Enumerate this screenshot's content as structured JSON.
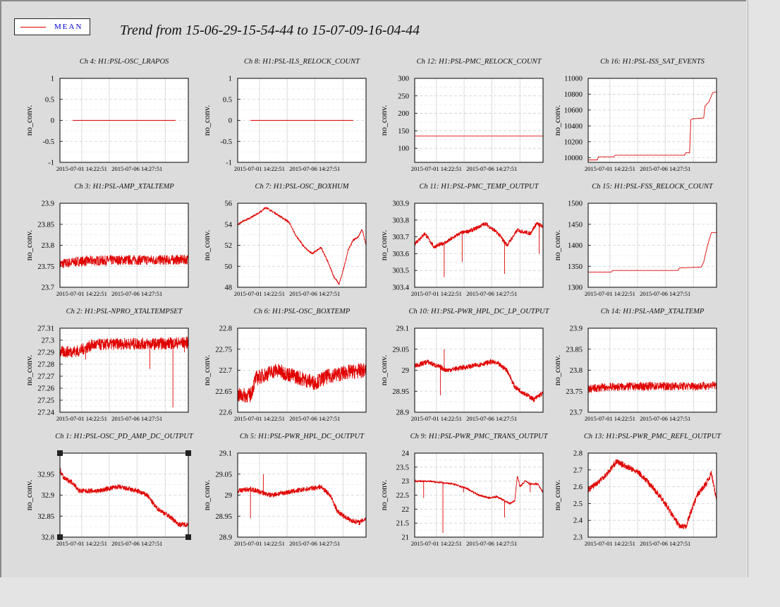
{
  "legend": {
    "label": "MEAN",
    "color": "#e00000"
  },
  "title": "Trend from 15-06-29-15-54-44 to 15-07-09-16-04-44",
  "y_label": "no_conv.",
  "x_ticks": [
    "2015-07-01 14:22:51",
    "2015-07-06 14:27:51"
  ],
  "chart_data": [
    {
      "type": "line",
      "title": "Ch 4: H1:PSL-OSC_LRAPOS",
      "ylim": [
        -1,
        1
      ],
      "yticks": [
        -1,
        -0.5,
        0,
        0.5,
        1
      ],
      "ylabels": [
        "-1",
        "-0.5",
        "0",
        "0.5",
        "1"
      ],
      "points": [
        [
          0.1,
          0
        ],
        [
          0.9,
          0
        ]
      ]
    },
    {
      "type": "line",
      "title": "Ch 8: H1:PSL-ILS_RELOCK_COUNT",
      "ylim": [
        -1,
        1
      ],
      "yticks": [
        -1,
        -0.5,
        0,
        0.5,
        1
      ],
      "ylabels": [
        "-1",
        "-0.5",
        "0",
        "0.5",
        "1"
      ],
      "points": [
        [
          0.1,
          0
        ],
        [
          0.9,
          0
        ]
      ]
    },
    {
      "type": "line",
      "title": "Ch 12: H1:PSL-PMC_RELOCK_COUNT",
      "ylim": [
        60,
        300
      ],
      "yticks": [
        100,
        150,
        200,
        250,
        300
      ],
      "ylabels": [
        "100",
        "150",
        "200",
        "250",
        "300"
      ],
      "points": [
        [
          0,
          135
        ],
        [
          1,
          135
        ]
      ]
    },
    {
      "type": "line",
      "title": "Ch 16: H1:PSL-ISS_SAT_EVENTS",
      "ylim": [
        9940,
        11000
      ],
      "yticks": [
        10000,
        10200,
        10400,
        10600,
        10800,
        11000
      ],
      "ylabels": [
        "10000",
        "10200",
        "10400",
        "10600",
        "10800",
        "11000"
      ],
      "points": [
        [
          0,
          9970
        ],
        [
          0.07,
          9970
        ],
        [
          0.08,
          10010
        ],
        [
          0.2,
          10010
        ],
        [
          0.21,
          10030
        ],
        [
          0.75,
          10030
        ],
        [
          0.76,
          10060
        ],
        [
          0.79,
          10060
        ],
        [
          0.8,
          10480
        ],
        [
          0.82,
          10490
        ],
        [
          0.9,
          10500
        ],
        [
          0.91,
          10650
        ],
        [
          0.94,
          10700
        ],
        [
          0.97,
          10820
        ],
        [
          1,
          10830
        ]
      ]
    },
    {
      "type": "line",
      "title": "Ch 3: H1:PSL-AMP_XTALTEMP",
      "ylim": [
        23.7,
        23.9
      ],
      "yticks": [
        23.7,
        23.75,
        23.8,
        23.85,
        23.9
      ],
      "ylabels": [
        "23.7",
        "23.75",
        "23.8",
        "23.85",
        "23.9"
      ],
      "noise": 0.012,
      "points": [
        [
          0,
          23.755
        ],
        [
          0.15,
          23.762
        ],
        [
          0.5,
          23.765
        ],
        [
          0.85,
          23.765
        ],
        [
          1,
          23.766
        ]
      ]
    },
    {
      "type": "line",
      "title": "Ch 7: H1:PSL-OSC_BOXHUM",
      "ylim": [
        48,
        56
      ],
      "yticks": [
        48,
        50,
        52,
        54,
        56
      ],
      "ylabels": [
        "48",
        "50",
        "52",
        "54",
        "56"
      ],
      "noise": 0.08,
      "points": [
        [
          0,
          54
        ],
        [
          0.08,
          54.5
        ],
        [
          0.18,
          55.2
        ],
        [
          0.22,
          55.6
        ],
        [
          0.3,
          55
        ],
        [
          0.4,
          54.2
        ],
        [
          0.45,
          53
        ],
        [
          0.52,
          51.8
        ],
        [
          0.58,
          51.2
        ],
        [
          0.65,
          51.8
        ],
        [
          0.7,
          50.5
        ],
        [
          0.75,
          49
        ],
        [
          0.79,
          48.3
        ],
        [
          0.82,
          49.5
        ],
        [
          0.86,
          51.5
        ],
        [
          0.9,
          52.5
        ],
        [
          0.94,
          52.8
        ],
        [
          0.97,
          53.5
        ],
        [
          1,
          52
        ]
      ]
    },
    {
      "type": "line",
      "title": "Ch 11: H1:PSL-PMC_TEMP_OUTPUT",
      "ylim": [
        303.4,
        303.9
      ],
      "yticks": [
        303.4,
        303.5,
        303.6,
        303.7,
        303.8,
        303.9
      ],
      "ylabels": [
        "303.4",
        "303.5",
        "303.6",
        "303.7",
        "303.8",
        "303.9"
      ],
      "noise": 0.012,
      "spikes": [
        [
          0.23,
          303.46
        ],
        [
          0.37,
          303.55
        ],
        [
          0.7,
          303.48
        ],
        [
          0.97,
          303.6
        ]
      ],
      "points": [
        [
          0,
          303.66
        ],
        [
          0.08,
          303.72
        ],
        [
          0.15,
          303.64
        ],
        [
          0.25,
          303.67
        ],
        [
          0.35,
          303.72
        ],
        [
          0.45,
          303.74
        ],
        [
          0.55,
          303.78
        ],
        [
          0.65,
          303.72
        ],
        [
          0.72,
          303.65
        ],
        [
          0.8,
          303.74
        ],
        [
          0.9,
          303.72
        ],
        [
          0.95,
          303.78
        ],
        [
          1,
          303.76
        ]
      ]
    },
    {
      "type": "line",
      "title": "Ch 15: H1:PSL-FSS_RELOCK_COUNT",
      "ylim": [
        1300,
        1500
      ],
      "yticks": [
        1300,
        1350,
        1400,
        1450,
        1500
      ],
      "ylabels": [
        "1300",
        "1350",
        "1400",
        "1450",
        "1500"
      ],
      "points": [
        [
          0,
          1336
        ],
        [
          0.18,
          1336
        ],
        [
          0.19,
          1340
        ],
        [
          0.7,
          1340
        ],
        [
          0.71,
          1346
        ],
        [
          0.88,
          1348
        ],
        [
          0.9,
          1360
        ],
        [
          0.93,
          1400
        ],
        [
          0.96,
          1430
        ],
        [
          1,
          1430
        ]
      ]
    },
    {
      "type": "line",
      "title": "Ch 2: H1:PSL-NPRO_XTALTEMPSET",
      "ylim": [
        27.24,
        27.31
      ],
      "yticks": [
        27.24,
        27.25,
        27.26,
        27.27,
        27.28,
        27.29,
        27.3,
        27.31
      ],
      "ylabels": [
        "27.24",
        "27.25",
        "27.26",
        "27.27",
        "27.28",
        "27.29",
        "27.3",
        "27.31"
      ],
      "noise": 0.005,
      "spikes": [
        [
          0.2,
          27.284
        ],
        [
          0.7,
          27.276
        ],
        [
          0.88,
          27.244
        ],
        [
          0.97,
          27.29
        ]
      ],
      "points": [
        [
          0,
          27.29
        ],
        [
          0.15,
          27.291
        ],
        [
          0.25,
          27.296
        ],
        [
          0.5,
          27.297
        ],
        [
          0.75,
          27.297
        ],
        [
          1,
          27.298
        ]
      ]
    },
    {
      "type": "line",
      "title": "Ch 6: H1:PSL-OSC_BOXTEMP",
      "ylim": [
        22.6,
        22.8
      ],
      "yticks": [
        22.6,
        22.65,
        22.7,
        22.75,
        22.8
      ],
      "ylabels": [
        "22.6",
        "22.65",
        "22.7",
        "22.75",
        "22.8"
      ],
      "noise": 0.018,
      "points": [
        [
          0,
          22.64
        ],
        [
          0.1,
          22.64
        ],
        [
          0.14,
          22.68
        ],
        [
          0.3,
          22.7
        ],
        [
          0.5,
          22.68
        ],
        [
          0.6,
          22.67
        ],
        [
          0.7,
          22.685
        ],
        [
          0.85,
          22.695
        ],
        [
          1,
          22.7
        ]
      ]
    },
    {
      "type": "line",
      "title": "Ch 10: H1:PSL-PWR_HPL_DC_LP_OUTPUT",
      "ylim": [
        28.9,
        29.1
      ],
      "yticks": [
        28.9,
        28.95,
        29,
        29.05,
        29.1
      ],
      "ylabels": [
        "28.9",
        "28.95",
        "29",
        "29.05",
        "29.1"
      ],
      "noise": 0.006,
      "spikes": [
        [
          0.2,
          28.94
        ],
        [
          0.23,
          29.05
        ]
      ],
      "points": [
        [
          0,
          29.01
        ],
        [
          0.1,
          29.02
        ],
        [
          0.25,
          29.0
        ],
        [
          0.45,
          29.01
        ],
        [
          0.6,
          29.02
        ],
        [
          0.65,
          29.015
        ],
        [
          0.72,
          29.0
        ],
        [
          0.78,
          28.96
        ],
        [
          0.88,
          28.94
        ],
        [
          0.93,
          28.93
        ],
        [
          0.97,
          28.94
        ],
        [
          1,
          28.945
        ]
      ]
    },
    {
      "type": "line",
      "title": "Ch 14: H1:PSL-AMP_XTALTEMP",
      "ylim": [
        23.7,
        23.9
      ],
      "yticks": [
        23.7,
        23.75,
        23.8,
        23.85,
        23.9
      ],
      "ylabels": [
        "23.7",
        "23.75",
        "23.8",
        "23.85",
        "23.9"
      ],
      "noise": 0.01,
      "points": [
        [
          0,
          23.755
        ],
        [
          0.15,
          23.76
        ],
        [
          0.5,
          23.762
        ],
        [
          0.85,
          23.762
        ],
        [
          1,
          23.764
        ]
      ]
    },
    {
      "type": "line",
      "title": "Ch 1: H1:PSL-OSC_PD_AMP_DC_OUTPUT",
      "ylim": [
        32.8,
        33
      ],
      "yticks": [
        32.8,
        32.85,
        32.9,
        32.95
      ],
      "ylabels": [
        "32.8",
        "32.85",
        "32.9",
        "32.95"
      ],
      "noise": 0.006,
      "points": [
        [
          0,
          32.96
        ],
        [
          0.03,
          32.94
        ],
        [
          0.1,
          32.93
        ],
        [
          0.15,
          32.91
        ],
        [
          0.3,
          32.91
        ],
        [
          0.45,
          32.92
        ],
        [
          0.6,
          32.91
        ],
        [
          0.68,
          32.9
        ],
        [
          0.75,
          32.87
        ],
        [
          0.85,
          32.85
        ],
        [
          0.93,
          32.83
        ],
        [
          1,
          32.83
        ]
      ]
    },
    {
      "type": "line",
      "title": "Ch 5: H1:PSL-PWR_HPL_DC_OUTPUT",
      "ylim": [
        28.9,
        29.1
      ],
      "yticks": [
        28.9,
        28.95,
        29,
        29.05,
        29.1
      ],
      "ylabels": [
        "28.9",
        "28.95",
        "29",
        "29.05",
        "29.1"
      ],
      "noise": 0.006,
      "spikes": [
        [
          0.1,
          28.945
        ],
        [
          0.2,
          29.05
        ]
      ],
      "points": [
        [
          0,
          29.01
        ],
        [
          0.1,
          29.015
        ],
        [
          0.25,
          29.0
        ],
        [
          0.45,
          29.01
        ],
        [
          0.55,
          29.015
        ],
        [
          0.65,
          29.02
        ],
        [
          0.72,
          29.0
        ],
        [
          0.78,
          28.96
        ],
        [
          0.88,
          28.94
        ],
        [
          0.95,
          28.935
        ],
        [
          1,
          28.945
        ]
      ]
    },
    {
      "type": "line",
      "title": "Ch 9: H1:PSL-PWR_PMC_TRANS_OUTPUT",
      "ylim": [
        21,
        24
      ],
      "yticks": [
        21,
        21.5,
        22,
        22.5,
        23,
        23.5,
        24
      ],
      "ylabels": [
        "21",
        "21.5",
        "22",
        "22.5",
        "23",
        "23.5",
        "24"
      ],
      "noise": 0.03,
      "spikes": [
        [
          0.07,
          22.4
        ],
        [
          0.22,
          21.15
        ],
        [
          0.38,
          22.6
        ],
        [
          0.7,
          21.7
        ],
        [
          0.9,
          22.6
        ]
      ],
      "points": [
        [
          0,
          23.0
        ],
        [
          0.1,
          23.0
        ],
        [
          0.3,
          22.9
        ],
        [
          0.4,
          22.75
        ],
        [
          0.5,
          22.5
        ],
        [
          0.58,
          22.4
        ],
        [
          0.64,
          22.45
        ],
        [
          0.7,
          22.3
        ],
        [
          0.74,
          22.2
        ],
        [
          0.78,
          22.3
        ],
        [
          0.8,
          23.2
        ],
        [
          0.82,
          22.8
        ],
        [
          0.86,
          23.0
        ],
        [
          0.9,
          22.9
        ],
        [
          0.96,
          22.9
        ],
        [
          1,
          22.6
        ]
      ]
    },
    {
      "type": "line",
      "title": "Ch 13: H1:PSL-PWR_PMC_REFL_OUTPUT",
      "ylim": [
        2.3,
        2.8
      ],
      "yticks": [
        2.3,
        2.4,
        2.5,
        2.6,
        2.7,
        2.8
      ],
      "ylabels": [
        "2.3",
        "2.4",
        "2.5",
        "2.6",
        "2.7",
        "2.8"
      ],
      "noise": 0.018,
      "points": [
        [
          0,
          2.58
        ],
        [
          0.08,
          2.63
        ],
        [
          0.15,
          2.68
        ],
        [
          0.22,
          2.75
        ],
        [
          0.3,
          2.72
        ],
        [
          0.4,
          2.68
        ],
        [
          0.5,
          2.6
        ],
        [
          0.6,
          2.5
        ],
        [
          0.68,
          2.4
        ],
        [
          0.72,
          2.36
        ],
        [
          0.76,
          2.36
        ],
        [
          0.8,
          2.45
        ],
        [
          0.85,
          2.55
        ],
        [
          0.92,
          2.62
        ],
        [
          0.96,
          2.68
        ],
        [
          0.98,
          2.6
        ],
        [
          1,
          2.52
        ]
      ]
    }
  ]
}
